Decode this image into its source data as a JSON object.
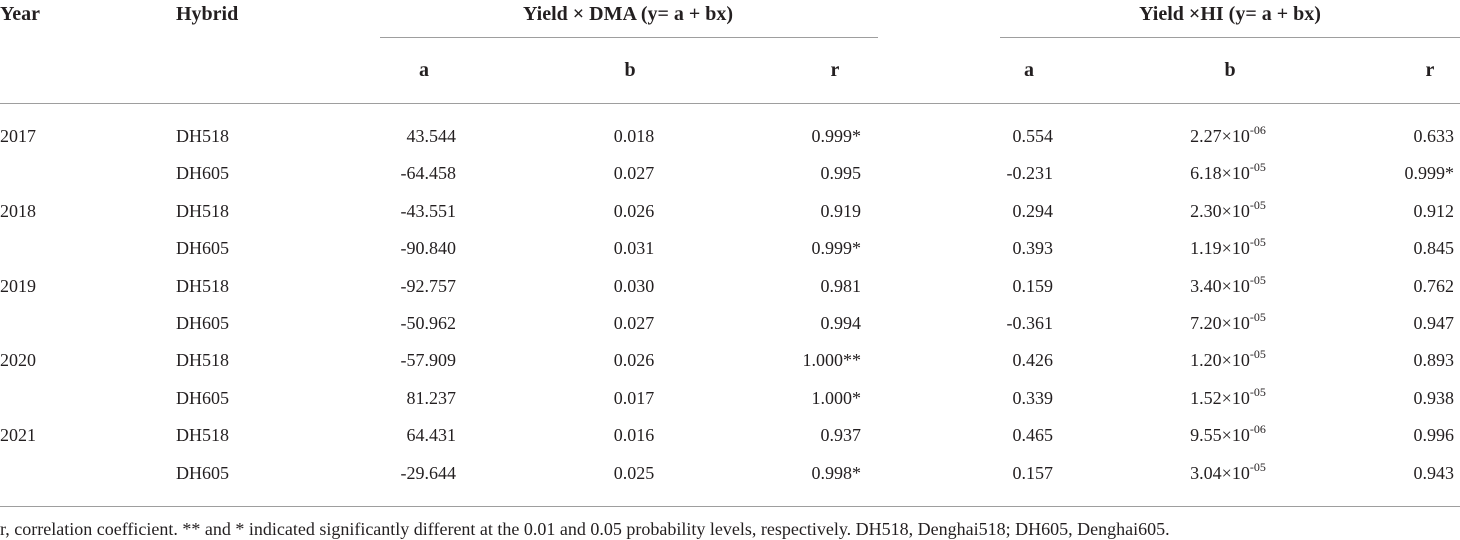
{
  "table": {
    "headers": {
      "year": "Year",
      "hybrid": "Hybrid",
      "group_dma": "Yield × DMA (y= a + bx)",
      "group_hi": "Yield ×HI (y= a + bx)",
      "dma_a": "a",
      "dma_b": "b",
      "dma_r": "r",
      "hi_a": "a",
      "hi_b": "b",
      "hi_r": "r"
    },
    "rows": [
      {
        "year": "2017",
        "hybrid": "DH518",
        "dma_a": "43.544",
        "dma_b": "0.018",
        "dma_r": "0.999*",
        "hi_a": "0.554",
        "hi_b_mant": "2.27×10",
        "hi_b_exp": "-06",
        "hi_r": "0.633"
      },
      {
        "year": "",
        "hybrid": "DH605",
        "dma_a": "-64.458",
        "dma_b": "0.027",
        "dma_r": "0.995",
        "hi_a": "-0.231",
        "hi_b_mant": "6.18×10",
        "hi_b_exp": "-05",
        "hi_r": "0.999*"
      },
      {
        "year": "2018",
        "hybrid": "DH518",
        "dma_a": "-43.551",
        "dma_b": "0.026",
        "dma_r": "0.919",
        "hi_a": "0.294",
        "hi_b_mant": "2.30×10",
        "hi_b_exp": "-05",
        "hi_r": "0.912"
      },
      {
        "year": "",
        "hybrid": "DH605",
        "dma_a": "-90.840",
        "dma_b": "0.031",
        "dma_r": "0.999*",
        "hi_a": "0.393",
        "hi_b_mant": "1.19×10",
        "hi_b_exp": "-05",
        "hi_r": "0.845"
      },
      {
        "year": "2019",
        "hybrid": "DH518",
        "dma_a": "-92.757",
        "dma_b": "0.030",
        "dma_r": "0.981",
        "hi_a": "0.159",
        "hi_b_mant": "3.40×10",
        "hi_b_exp": "-05",
        "hi_r": "0.762"
      },
      {
        "year": "",
        "hybrid": "DH605",
        "dma_a": "-50.962",
        "dma_b": "0.027",
        "dma_r": "0.994",
        "hi_a": "-0.361",
        "hi_b_mant": "7.20×10",
        "hi_b_exp": "-05",
        "hi_r": "0.947"
      },
      {
        "year": "2020",
        "hybrid": "DH518",
        "dma_a": "-57.909",
        "dma_b": "0.026",
        "dma_r": "1.000**",
        "hi_a": "0.426",
        "hi_b_mant": "1.20×10",
        "hi_b_exp": "-05",
        "hi_r": "0.893"
      },
      {
        "year": "",
        "hybrid": "DH605",
        "dma_a": "81.237",
        "dma_b": "0.017",
        "dma_r": "1.000*",
        "hi_a": "0.339",
        "hi_b_mant": "1.52×10",
        "hi_b_exp": "-05",
        "hi_r": "0.938"
      },
      {
        "year": "2021",
        "hybrid": "DH518",
        "dma_a": "64.431",
        "dma_b": "0.016",
        "dma_r": "0.937",
        "hi_a": "0.465",
        "hi_b_mant": "9.55×10",
        "hi_b_exp": "-06",
        "hi_r": "0.996"
      },
      {
        "year": "",
        "hybrid": "DH605",
        "dma_a": "-29.644",
        "dma_b": "0.025",
        "dma_r": "0.998*",
        "hi_a": "0.157",
        "hi_b_mant": "3.04×10",
        "hi_b_exp": "-05",
        "hi_r": "0.943"
      }
    ],
    "footnote": "r, correlation coefficient. ** and * indicated significantly different at the 0.01 and 0.05 probability levels, respectively. DH518, Denghai518; DH605, Denghai605."
  }
}
